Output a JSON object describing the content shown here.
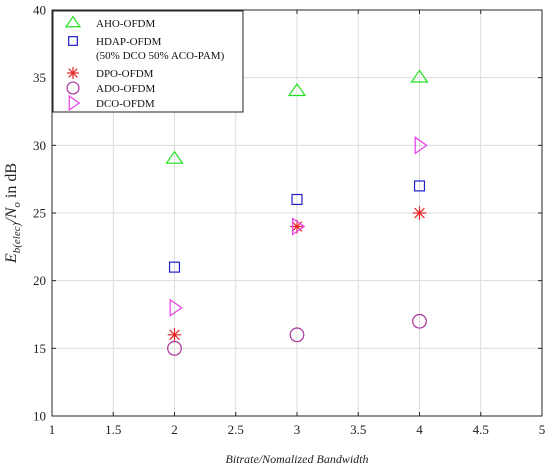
{
  "chart_data": {
    "type": "scatter",
    "xlabel": "Bitrate/Nomalized Bandwidth",
    "ylabel": {
      "main": "E",
      "sub1": "b(elec)",
      "mid": "/N",
      "sub2": "o",
      "tail": " in dB"
    },
    "xlim": [
      1,
      5
    ],
    "ylim": [
      10,
      40
    ],
    "xticks": [
      1,
      1.5,
      2,
      2.5,
      3,
      3.5,
      4,
      4.5,
      5
    ],
    "yticks": [
      10,
      15,
      20,
      25,
      30,
      35,
      40
    ],
    "grid": true,
    "legend_position": "top-left",
    "series": [
      {
        "name": "AHO-OFDM",
        "name_line2": "",
        "marker": "triangle-up",
        "color": "#22e01e",
        "x": [
          2,
          3,
          4
        ],
        "y": [
          29,
          34,
          35
        ]
      },
      {
        "name": "HDAP-OFDM",
        "name_line2": "(50% DCO 50% ACO-PAM)",
        "marker": "square",
        "color": "#1f1fc8",
        "x": [
          2,
          3,
          4
        ],
        "y": [
          21,
          26,
          27
        ]
      },
      {
        "name": "DPO-OFDM",
        "name_line2": "",
        "marker": "asterisk",
        "color": "#e8262a",
        "x": [
          2,
          3,
          4
        ],
        "y": [
          16,
          24,
          25
        ]
      },
      {
        "name": "ADO-OFDM",
        "name_line2": "",
        "marker": "circle",
        "color": "#a8339c",
        "x": [
          2,
          3,
          4
        ],
        "y": [
          15,
          16,
          17
        ]
      },
      {
        "name": "DCO-OFDM",
        "name_line2": "",
        "marker": "triangle-right",
        "color": "#e83ee8",
        "x": [
          2,
          3,
          4
        ],
        "y": [
          18,
          24,
          30
        ]
      }
    ]
  }
}
